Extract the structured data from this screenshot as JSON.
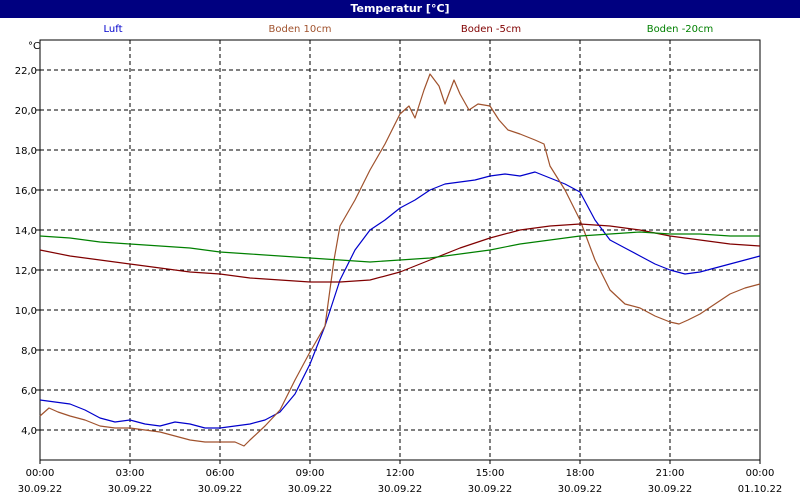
{
  "window": {
    "title": "Temperatur [°C]"
  },
  "chart_data": {
    "type": "line",
    "title": "Temperatur [°C]",
    "ylabel": "°C",
    "xlabel": "",
    "ylim": [
      2.5,
      23.5
    ],
    "yticks": [
      4,
      6,
      8,
      10,
      12,
      14,
      16,
      18,
      20,
      22
    ],
    "ytick_labels": [
      "4,0",
      "6,0",
      "8,0",
      "10,0",
      "12,0",
      "14,0",
      "16,0",
      "18,0",
      "20,0",
      "22,0"
    ],
    "xlim": [
      0,
      24
    ],
    "xticks": [
      {
        "h": 0,
        "time": "00:00",
        "date": "30.09.22"
      },
      {
        "h": 3,
        "time": "03:00",
        "date": "30.09.22"
      },
      {
        "h": 6,
        "time": "06:00",
        "date": "30.09.22"
      },
      {
        "h": 9,
        "time": "09:00",
        "date": "30.09.22"
      },
      {
        "h": 12,
        "time": "12:00",
        "date": "30.09.22"
      },
      {
        "h": 15,
        "time": "15:00",
        "date": "30.09.22"
      },
      {
        "h": 18,
        "time": "18:00",
        "date": "30.09.22"
      },
      {
        "h": 21,
        "time": "21:00",
        "date": "30.09.22"
      },
      {
        "h": 24,
        "time": "00:00",
        "date": "01.10.22"
      }
    ],
    "grid": true,
    "legend_position": "top",
    "series": [
      {
        "name": "Luft",
        "color": "#0000cc",
        "points": [
          [
            0,
            5.5
          ],
          [
            0.5,
            5.4
          ],
          [
            1,
            5.3
          ],
          [
            1.5,
            5.0
          ],
          [
            2,
            4.6
          ],
          [
            2.5,
            4.4
          ],
          [
            3,
            4.5
          ],
          [
            3.5,
            4.3
          ],
          [
            4,
            4.2
          ],
          [
            4.5,
            4.4
          ],
          [
            5,
            4.3
          ],
          [
            5.5,
            4.1
          ],
          [
            6,
            4.1
          ],
          [
            6.5,
            4.2
          ],
          [
            7,
            4.3
          ],
          [
            7.5,
            4.5
          ],
          [
            8,
            4.9
          ],
          [
            8.5,
            5.8
          ],
          [
            9,
            7.3
          ],
          [
            9.5,
            9.2
          ],
          [
            10,
            11.5
          ],
          [
            10.5,
            13.0
          ],
          [
            11,
            14.0
          ],
          [
            11.5,
            14.5
          ],
          [
            12,
            15.1
          ],
          [
            12.5,
            15.5
          ],
          [
            13,
            16.0
          ],
          [
            13.5,
            16.3
          ],
          [
            14,
            16.4
          ],
          [
            14.5,
            16.5
          ],
          [
            15,
            16.7
          ],
          [
            15.5,
            16.8
          ],
          [
            16,
            16.7
          ],
          [
            16.5,
            16.9
          ],
          [
            17,
            16.6
          ],
          [
            17.5,
            16.3
          ],
          [
            18,
            15.9
          ],
          [
            18.5,
            14.5
          ],
          [
            19,
            13.5
          ],
          [
            19.5,
            13.1
          ],
          [
            20,
            12.7
          ],
          [
            20.5,
            12.3
          ],
          [
            21,
            12.0
          ],
          [
            21.5,
            11.8
          ],
          [
            22,
            11.9
          ],
          [
            22.5,
            12.1
          ],
          [
            23,
            12.3
          ],
          [
            23.5,
            12.5
          ],
          [
            24,
            12.7
          ]
        ]
      },
      {
        "name": "Boden 10cm",
        "color": "#a0522d",
        "points": [
          [
            0,
            4.7
          ],
          [
            0.3,
            5.1
          ],
          [
            0.6,
            4.9
          ],
          [
            1,
            4.7
          ],
          [
            1.5,
            4.5
          ],
          [
            2,
            4.2
          ],
          [
            2.5,
            4.1
          ],
          [
            3,
            4.1
          ],
          [
            3.5,
            4.0
          ],
          [
            4,
            3.9
          ],
          [
            4.5,
            3.7
          ],
          [
            5,
            3.5
          ],
          [
            5.5,
            3.4
          ],
          [
            6,
            3.4
          ],
          [
            6.5,
            3.4
          ],
          [
            6.8,
            3.2
          ],
          [
            7,
            3.5
          ],
          [
            7.5,
            4.2
          ],
          [
            8,
            5.0
          ],
          [
            8.5,
            6.5
          ],
          [
            9,
            7.9
          ],
          [
            9.5,
            9.2
          ],
          [
            9.8,
            12.5
          ],
          [
            10,
            14.2
          ],
          [
            10.5,
            15.5
          ],
          [
            11,
            17.0
          ],
          [
            11.5,
            18.3
          ],
          [
            12,
            19.8
          ],
          [
            12.3,
            20.2
          ],
          [
            12.5,
            19.6
          ],
          [
            12.8,
            21.0
          ],
          [
            13,
            21.8
          ],
          [
            13.3,
            21.2
          ],
          [
            13.5,
            20.3
          ],
          [
            13.8,
            21.5
          ],
          [
            14,
            20.8
          ],
          [
            14.3,
            20.0
          ],
          [
            14.6,
            20.3
          ],
          [
            15,
            20.2
          ],
          [
            15.3,
            19.5
          ],
          [
            15.6,
            19.0
          ],
          [
            16,
            18.8
          ],
          [
            16.5,
            18.5
          ],
          [
            16.8,
            18.3
          ],
          [
            17,
            17.2
          ],
          [
            17.5,
            16.0
          ],
          [
            18,
            14.5
          ],
          [
            18.5,
            12.5
          ],
          [
            19,
            11.0
          ],
          [
            19.5,
            10.3
          ],
          [
            20,
            10.1
          ],
          [
            20.5,
            9.7
          ],
          [
            21,
            9.4
          ],
          [
            21.3,
            9.3
          ],
          [
            21.6,
            9.5
          ],
          [
            22,
            9.8
          ],
          [
            22.5,
            10.3
          ],
          [
            23,
            10.8
          ],
          [
            23.5,
            11.1
          ],
          [
            24,
            11.3
          ]
        ]
      },
      {
        "name": "Boden -5cm",
        "color": "#800000",
        "points": [
          [
            0,
            13.0
          ],
          [
            1,
            12.7
          ],
          [
            2,
            12.5
          ],
          [
            3,
            12.3
          ],
          [
            4,
            12.1
          ],
          [
            5,
            11.9
          ],
          [
            6,
            11.8
          ],
          [
            7,
            11.6
          ],
          [
            8,
            11.5
          ],
          [
            9,
            11.4
          ],
          [
            10,
            11.4
          ],
          [
            11,
            11.5
          ],
          [
            12,
            11.9
          ],
          [
            13,
            12.5
          ],
          [
            14,
            13.1
          ],
          [
            15,
            13.6
          ],
          [
            16,
            14.0
          ],
          [
            17,
            14.2
          ],
          [
            18,
            14.3
          ],
          [
            19,
            14.2
          ],
          [
            20,
            14.0
          ],
          [
            21,
            13.7
          ],
          [
            22,
            13.5
          ],
          [
            23,
            13.3
          ],
          [
            24,
            13.2
          ]
        ]
      },
      {
        "name": "Boden -20cm",
        "color": "#008000",
        "points": [
          [
            0,
            13.7
          ],
          [
            1,
            13.6
          ],
          [
            2,
            13.4
          ],
          [
            3,
            13.3
          ],
          [
            4,
            13.2
          ],
          [
            5,
            13.1
          ],
          [
            6,
            12.9
          ],
          [
            7,
            12.8
          ],
          [
            8,
            12.7
          ],
          [
            9,
            12.6
          ],
          [
            10,
            12.5
          ],
          [
            11,
            12.4
          ],
          [
            12,
            12.5
          ],
          [
            13,
            12.6
          ],
          [
            14,
            12.8
          ],
          [
            15,
            13.0
          ],
          [
            16,
            13.3
          ],
          [
            17,
            13.5
          ],
          [
            18,
            13.7
          ],
          [
            19,
            13.8
          ],
          [
            20,
            13.9
          ],
          [
            21,
            13.8
          ],
          [
            22,
            13.8
          ],
          [
            23,
            13.7
          ],
          [
            24,
            13.7
          ]
        ]
      }
    ]
  }
}
